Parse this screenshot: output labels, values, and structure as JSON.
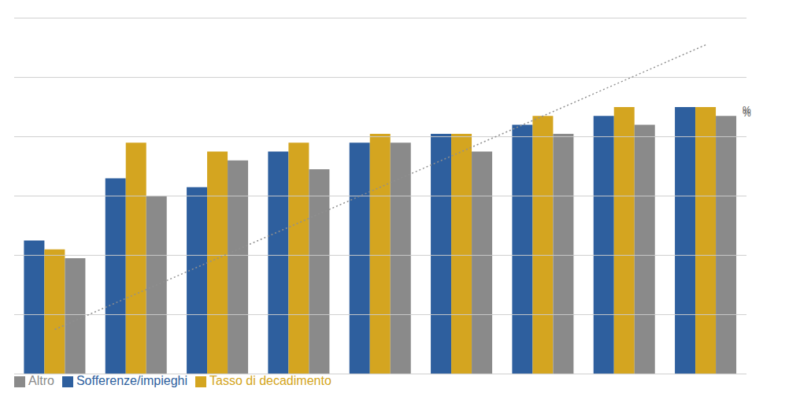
{
  "chart_data": {
    "type": "bar",
    "categories": [
      null,
      null,
      null,
      null,
      null,
      null,
      null,
      null,
      null
    ],
    "series": [
      {
        "name": "Sofferenze/impieghi",
        "color": "#2e5f9e",
        "values": [
          1.5,
          2.2,
          2.1,
          2.5,
          2.6,
          2.7,
          2.8,
          2.9,
          3.0
        ]
      },
      {
        "name": "Tasso di decadimento",
        "color": "#d4a520",
        "values": [
          1.4,
          2.6,
          2.5,
          2.6,
          2.7,
          2.7,
          2.9,
          3.0,
          3.0
        ]
      },
      {
        "name": "Altro",
        "color": "#8a8a8a",
        "values": [
          1.3,
          2.0,
          2.4,
          2.3,
          2.6,
          2.5,
          2.7,
          2.8,
          2.9
        ]
      },
      {
        "type": "line",
        "color": "#909090",
        "line_style": "dotted",
        "values": [
          0.5,
          0.9,
          1.3,
          1.7,
          2.1,
          2.5,
          2.9,
          3.3,
          3.7
        ]
      }
    ],
    "ylim": [
      0,
      4.0
    ],
    "yticks": [
      0,
      0.6666666666666666,
      1.3333333333333333,
      2.0,
      2.6666666666666665,
      3.3333333333333335,
      4.0
    ],
    "grid": true,
    "tick_labels": false,
    "legend": "lower left",
    "annotations": [
      {
        "text": "%",
        "series": "Altro"
      },
      {
        "text": "%",
        "series": "Tasso di decadimento"
      }
    ]
  }
}
